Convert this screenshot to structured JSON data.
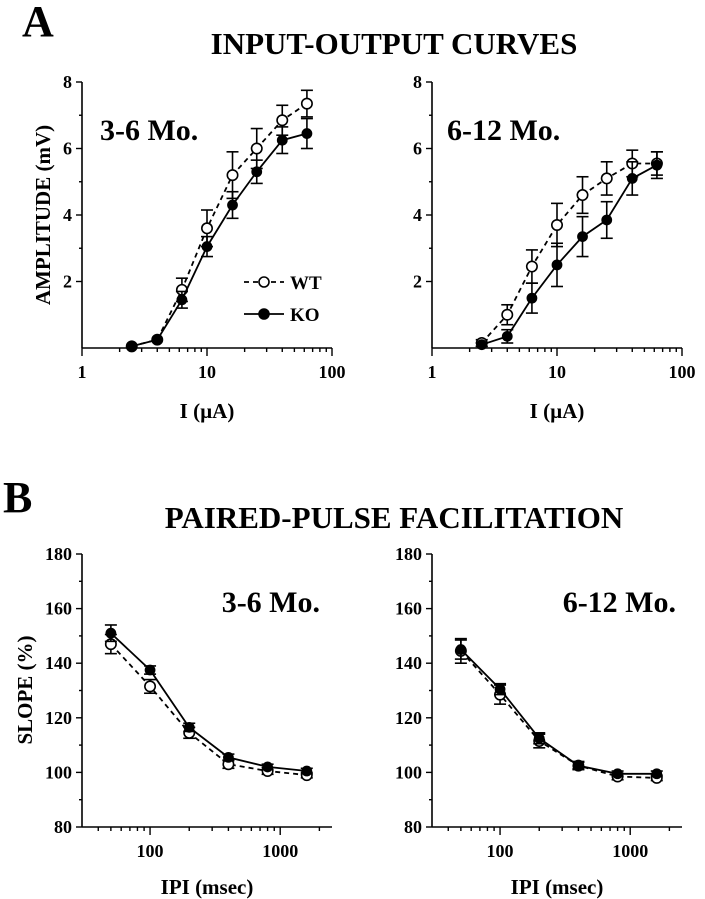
{
  "figure": {
    "panel_a_letter": "A",
    "panel_a_title": "INPUT-OUTPUT CURVES",
    "panel_b_letter": "B",
    "panel_b_title": "PAIRED-PULSE FACILITATION"
  },
  "legend": {
    "wt_label": "WT",
    "ko_label": "KO"
  },
  "chart_data": [
    {
      "id": "io_3_6",
      "type": "line",
      "panel": "A",
      "inset_label": "3-6 Mo.",
      "xlabel": "I (µA)",
      "ylabel": "AMPLITUDE (mV)",
      "xscale": "log",
      "xlim": [
        1,
        100
      ],
      "ylim": [
        0,
        8
      ],
      "xticks": [
        1,
        10,
        100
      ],
      "yticks": [
        2,
        4,
        6,
        8
      ],
      "legend": "lower-right",
      "series": [
        {
          "name": "WT",
          "marker": "open-circle",
          "line": "dashed",
          "x": [
            2.5,
            4,
            6.3,
            10,
            16,
            25,
            40,
            63
          ],
          "y": [
            0.05,
            0.25,
            1.75,
            3.6,
            5.2,
            6.0,
            6.85,
            7.35
          ],
          "err": [
            0,
            0,
            0.35,
            0.55,
            0.7,
            0.6,
            0.45,
            0.4
          ]
        },
        {
          "name": "KO",
          "marker": "filled-circle",
          "line": "solid",
          "x": [
            2.5,
            4,
            6.3,
            10,
            16,
            25,
            40,
            63
          ],
          "y": [
            0.05,
            0.25,
            1.45,
            3.05,
            4.3,
            5.3,
            6.25,
            6.45
          ],
          "err": [
            0,
            0,
            0.25,
            0.3,
            0.4,
            0.35,
            0.4,
            0.45
          ]
        }
      ]
    },
    {
      "id": "io_6_12",
      "type": "line",
      "panel": "A",
      "inset_label": "6-12 Mo.",
      "xlabel": "I (µA)",
      "ylabel": "",
      "xscale": "log",
      "xlim": [
        1,
        100
      ],
      "ylim": [
        0,
        8
      ],
      "xticks": [
        1,
        10,
        100
      ],
      "yticks": [
        2,
        4,
        6,
        8
      ],
      "series": [
        {
          "name": "WT",
          "marker": "open-circle",
          "line": "dashed",
          "x": [
            2.5,
            4,
            6.3,
            10,
            16,
            25,
            40,
            63
          ],
          "y": [
            0.15,
            1.0,
            2.45,
            3.7,
            4.6,
            5.1,
            5.55,
            5.55
          ],
          "err": [
            0.1,
            0.3,
            0.5,
            0.65,
            0.55,
            0.5,
            0.4,
            0.35
          ]
        },
        {
          "name": "KO",
          "marker": "filled-circle",
          "line": "solid",
          "x": [
            2.5,
            4,
            6.3,
            10,
            16,
            25,
            40,
            63
          ],
          "y": [
            0.1,
            0.35,
            1.5,
            2.5,
            3.35,
            3.85,
            5.1,
            5.5
          ],
          "err": [
            0.05,
            0.2,
            0.45,
            0.65,
            0.6,
            0.55,
            0.5,
            0.4
          ]
        }
      ]
    },
    {
      "id": "ppf_3_6",
      "type": "line",
      "panel": "B",
      "inset_label": "3-6 Mo.",
      "xlabel": "IPI (msec)",
      "ylabel": "SLOPE (%)",
      "xscale": "log",
      "xlim": [
        30,
        2500
      ],
      "ylim": [
        80,
        180
      ],
      "xticks": [
        100,
        1000
      ],
      "yticks": [
        80,
        100,
        120,
        140,
        160,
        180
      ],
      "series": [
        {
          "name": "WT",
          "marker": "open-circle",
          "line": "dashed",
          "x": [
            50,
            100,
            200,
            400,
            800,
            1600
          ],
          "y": [
            147,
            131.5,
            114.5,
            103,
            100.5,
            99
          ],
          "err": [
            3.5,
            2.5,
            2,
            1.5,
            1.2,
            1
          ]
        },
        {
          "name": "KO",
          "marker": "filled-circle",
          "line": "solid",
          "x": [
            50,
            100,
            200,
            400,
            800,
            1600
          ],
          "y": [
            151,
            137.5,
            116.5,
            105.5,
            102,
            100.5
          ],
          "err": [
            3,
            1.5,
            1.5,
            1.2,
            1,
            1
          ]
        }
      ]
    },
    {
      "id": "ppf_6_12",
      "type": "line",
      "panel": "B",
      "inset_label": "6-12 Mo.",
      "xlabel": "IPI (msec)",
      "ylabel": "",
      "xscale": "log",
      "xlim": [
        30,
        2500
      ],
      "ylim": [
        80,
        180
      ],
      "xticks": [
        100,
        1000
      ],
      "yticks": [
        80,
        100,
        120,
        140,
        160,
        180
      ],
      "series": [
        {
          "name": "WT",
          "marker": "open-circle",
          "line": "dashed",
          "x": [
            50,
            100,
            200,
            400,
            800,
            1600
          ],
          "y": [
            144.5,
            128.5,
            111.5,
            102.5,
            98.5,
            98
          ],
          "err": [
            4.5,
            3.5,
            2.5,
            1.5,
            1.2,
            1
          ]
        },
        {
          "name": "KO",
          "marker": "filled-circle",
          "line": "solid",
          "x": [
            50,
            100,
            200,
            400,
            800,
            1600
          ],
          "y": [
            145,
            130.5,
            112.5,
            102.5,
            99.5,
            99.5
          ],
          "err": [
            3.5,
            2,
            2,
            1.2,
            1,
            1
          ]
        }
      ]
    }
  ]
}
